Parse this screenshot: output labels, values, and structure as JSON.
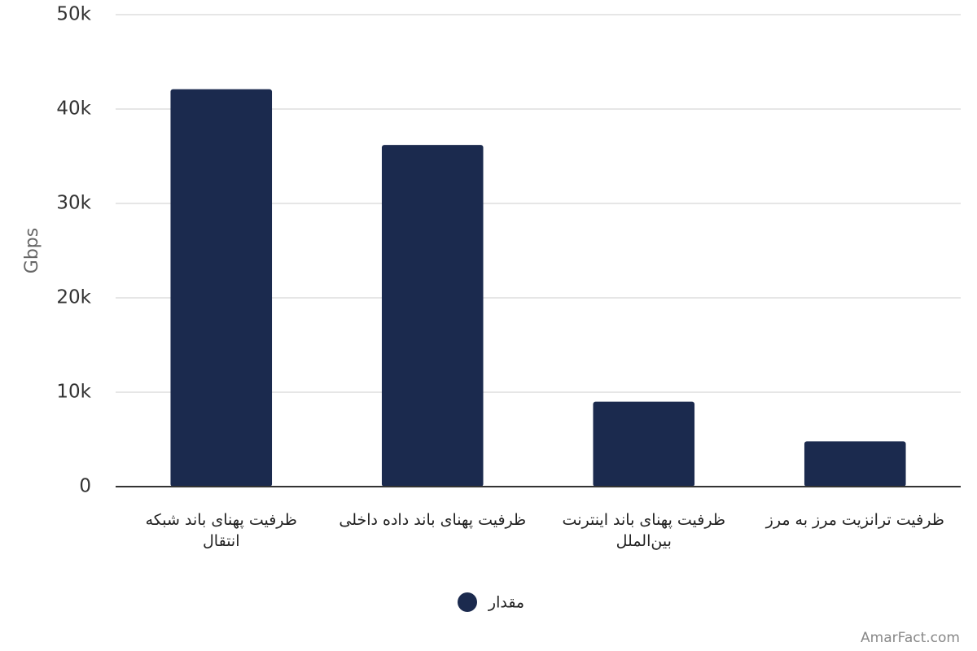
{
  "chart_data": {
    "type": "bar",
    "y_label": "Gbps",
    "categories": [
      "ظرفیت پهنای باند شبکه انتقال",
      "ظرفیت پهنای باند داده داخلی",
      "ظرفیت پهنای باند اینترنت بین‌الملل",
      "ظرفیت ترانزیت مرز به مرز"
    ],
    "series": [
      {
        "name": "مقدار",
        "color": "#1b2a4e",
        "values": [
          42100,
          36200,
          9000,
          4800
        ]
      }
    ],
    "ylim": [
      0,
      50000
    ],
    "yticks": [
      0,
      {
        "value": 10000,
        "label": "10k"
      },
      {
        "value": 20000,
        "label": "20k"
      },
      {
        "value": 30000,
        "label": "30k"
      },
      {
        "value": 40000,
        "label": "40k"
      },
      {
        "value": 50000,
        "label": "50k"
      }
    ],
    "grid": true,
    "legend": "bottom",
    "source": "AmarFact.com"
  }
}
